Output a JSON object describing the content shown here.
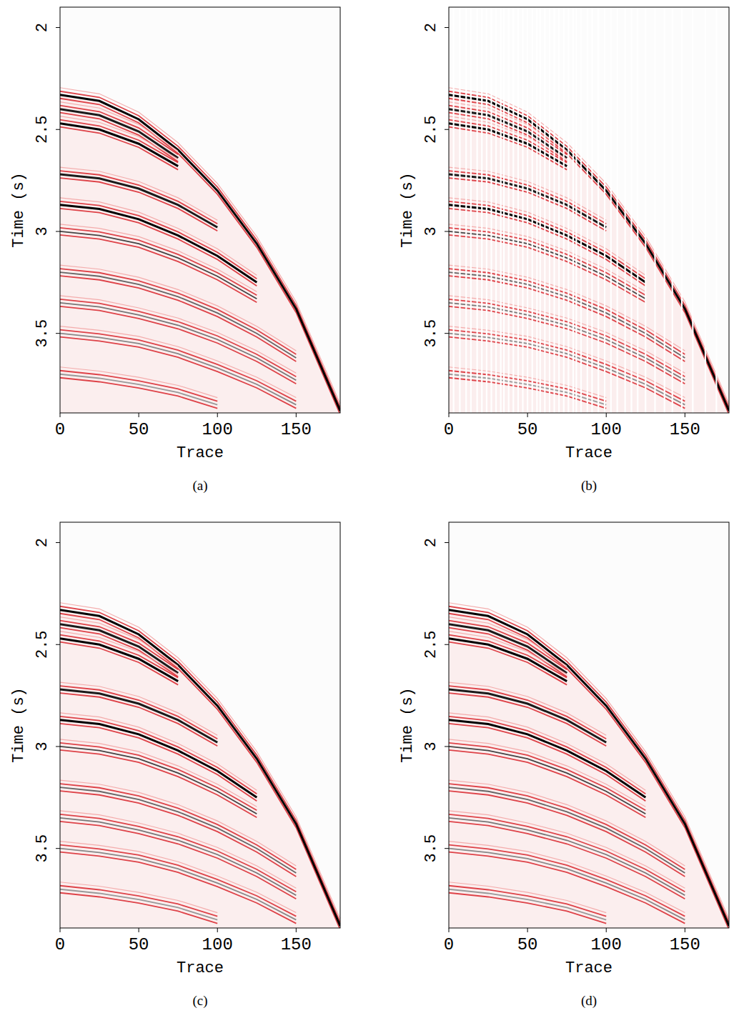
{
  "chart_data": [
    {
      "type": "seismic",
      "title": "(a)",
      "x_label": "Trace",
      "y_label": "Time (s)",
      "xlim": [
        0,
        178
      ],
      "ylim": [
        1.9,
        3.89
      ],
      "xticks": [
        0,
        50,
        100,
        150
      ],
      "yticks": [
        2,
        2.5,
        3,
        3.5
      ],
      "series": [
        {
          "x": [
            0,
            25,
            50,
            75,
            100,
            125,
            150,
            178
          ],
          "values": [
            2.33,
            2.36,
            2.45,
            2.6,
            2.8,
            3.06,
            3.38,
            3.88
          ],
          "color": "#000000"
        },
        {
          "x": [
            0,
            25,
            50,
            75
          ],
          "values": [
            2.4,
            2.43,
            2.51,
            2.64
          ],
          "color": "#1a1a1a"
        },
        {
          "x": [
            0,
            25,
            50,
            75
          ],
          "values": [
            2.47,
            2.5,
            2.57,
            2.68
          ],
          "color": "#000000"
        },
        {
          "x": [
            0,
            25,
            50,
            75,
            100
          ],
          "values": [
            2.72,
            2.74,
            2.79,
            2.87,
            2.98
          ],
          "color": "#1a1a1a"
        },
        {
          "x": [
            0,
            25,
            50,
            75,
            100,
            125
          ],
          "values": [
            2.87,
            2.89,
            2.94,
            3.02,
            3.12,
            3.25
          ],
          "color": "#000000"
        },
        {
          "x": [
            0,
            25,
            50,
            75,
            100,
            125
          ],
          "values": [
            3.0,
            3.02,
            3.06,
            3.13,
            3.22,
            3.33
          ],
          "color": "#444444"
        },
        {
          "x": [
            0,
            25,
            50,
            75,
            100,
            125,
            150
          ],
          "values": [
            3.2,
            3.22,
            3.26,
            3.32,
            3.4,
            3.5,
            3.62
          ],
          "color": "#666666"
        },
        {
          "x": [
            0,
            25,
            50,
            75,
            100,
            125,
            150
          ],
          "values": [
            3.35,
            3.37,
            3.41,
            3.46,
            3.53,
            3.62,
            3.73
          ],
          "color": "#777777"
        },
        {
          "x": [
            0,
            25,
            50,
            75,
            100,
            125,
            150
          ],
          "values": [
            3.5,
            3.52,
            3.55,
            3.6,
            3.67,
            3.75,
            3.85
          ],
          "color": "#888888"
        },
        {
          "x": [
            0,
            25,
            50,
            75,
            100
          ],
          "values": [
            3.7,
            3.72,
            3.75,
            3.79,
            3.85
          ],
          "color": "#999999"
        }
      ]
    },
    {
      "type": "seismic",
      "title": "(b)",
      "x_label": "Trace",
      "y_label": "Time (s)",
      "xlim": [
        0,
        178
      ],
      "ylim": [
        1.9,
        3.89
      ],
      "xticks": [
        0,
        50,
        100,
        150
      ],
      "yticks": [
        2,
        2.5,
        3,
        3.5
      ],
      "missing_traces": [
        3,
        7,
        11,
        14,
        18,
        21,
        24,
        27,
        30,
        33,
        35,
        38,
        41,
        44,
        47,
        50,
        53,
        56,
        58,
        61,
        64,
        67,
        70,
        73,
        76,
        79,
        81,
        84,
        88,
        91,
        95,
        99,
        103,
        107,
        112,
        116,
        120,
        125,
        131,
        137,
        142,
        148,
        155,
        163,
        170
      ],
      "series": [
        {
          "x": [
            0,
            25,
            50,
            75,
            100,
            125,
            150,
            178
          ],
          "values": [
            2.33,
            2.36,
            2.45,
            2.6,
            2.8,
            3.06,
            3.38,
            3.88
          ],
          "color": "#000000"
        },
        {
          "x": [
            0,
            25,
            50,
            75
          ],
          "values": [
            2.4,
            2.43,
            2.51,
            2.64
          ],
          "color": "#1a1a1a"
        },
        {
          "x": [
            0,
            25,
            50,
            75
          ],
          "values": [
            2.47,
            2.5,
            2.57,
            2.68
          ],
          "color": "#000000"
        },
        {
          "x": [
            0,
            25,
            50,
            75,
            100
          ],
          "values": [
            2.72,
            2.74,
            2.79,
            2.87,
            2.98
          ],
          "color": "#1a1a1a"
        },
        {
          "x": [
            0,
            25,
            50,
            75,
            100,
            125
          ],
          "values": [
            2.87,
            2.89,
            2.94,
            3.02,
            3.12,
            3.25
          ],
          "color": "#000000"
        },
        {
          "x": [
            0,
            25,
            50,
            75,
            100,
            125
          ],
          "values": [
            3.0,
            3.02,
            3.06,
            3.13,
            3.22,
            3.33
          ],
          "color": "#444444"
        },
        {
          "x": [
            0,
            25,
            50,
            75,
            100,
            125,
            150
          ],
          "values": [
            3.2,
            3.22,
            3.26,
            3.32,
            3.4,
            3.5,
            3.62
          ],
          "color": "#666666"
        },
        {
          "x": [
            0,
            25,
            50,
            75,
            100,
            125,
            150
          ],
          "values": [
            3.35,
            3.37,
            3.41,
            3.46,
            3.53,
            3.62,
            3.73
          ],
          "color": "#777777"
        },
        {
          "x": [
            0,
            25,
            50,
            75,
            100,
            125,
            150
          ],
          "values": [
            3.5,
            3.52,
            3.55,
            3.6,
            3.67,
            3.75,
            3.85
          ],
          "color": "#888888"
        },
        {
          "x": [
            0,
            25,
            50,
            75,
            100
          ],
          "values": [
            3.7,
            3.72,
            3.75,
            3.79,
            3.85
          ],
          "color": "#999999"
        }
      ]
    },
    {
      "type": "seismic",
      "title": "(c)",
      "x_label": "Trace",
      "y_label": "Time (s)",
      "xlim": [
        0,
        178
      ],
      "ylim": [
        1.9,
        3.89
      ],
      "xticks": [
        0,
        50,
        100,
        150
      ],
      "yticks": [
        2,
        2.5,
        3,
        3.5
      ],
      "series": [
        {
          "x": [
            0,
            25,
            50,
            75,
            100,
            125,
            150,
            178
          ],
          "values": [
            2.33,
            2.36,
            2.45,
            2.6,
            2.8,
            3.06,
            3.38,
            3.88
          ],
          "color": "#000000"
        },
        {
          "x": [
            0,
            25,
            50,
            75
          ],
          "values": [
            2.4,
            2.43,
            2.51,
            2.64
          ],
          "color": "#1a1a1a"
        },
        {
          "x": [
            0,
            25,
            50,
            75
          ],
          "values": [
            2.47,
            2.5,
            2.57,
            2.68
          ],
          "color": "#000000"
        },
        {
          "x": [
            0,
            25,
            50,
            75,
            100
          ],
          "values": [
            2.72,
            2.74,
            2.79,
            2.87,
            2.98
          ],
          "color": "#1a1a1a"
        },
        {
          "x": [
            0,
            25,
            50,
            75,
            100,
            125
          ],
          "values": [
            2.87,
            2.89,
            2.94,
            3.02,
            3.12,
            3.25
          ],
          "color": "#000000"
        },
        {
          "x": [
            0,
            25,
            50,
            75,
            100,
            125
          ],
          "values": [
            3.0,
            3.02,
            3.06,
            3.13,
            3.22,
            3.33
          ],
          "color": "#444444"
        },
        {
          "x": [
            0,
            25,
            50,
            75,
            100,
            125,
            150
          ],
          "values": [
            3.2,
            3.22,
            3.26,
            3.32,
            3.4,
            3.5,
            3.62
          ],
          "color": "#666666"
        },
        {
          "x": [
            0,
            25,
            50,
            75,
            100,
            125,
            150
          ],
          "values": [
            3.35,
            3.37,
            3.41,
            3.46,
            3.53,
            3.62,
            3.73
          ],
          "color": "#777777"
        },
        {
          "x": [
            0,
            25,
            50,
            75,
            100,
            125,
            150
          ],
          "values": [
            3.5,
            3.52,
            3.55,
            3.6,
            3.67,
            3.75,
            3.85
          ],
          "color": "#888888"
        },
        {
          "x": [
            0,
            25,
            50,
            75,
            100
          ],
          "values": [
            3.7,
            3.72,
            3.75,
            3.79,
            3.85
          ],
          "color": "#999999"
        }
      ]
    },
    {
      "type": "seismic",
      "title": "(d)",
      "x_label": "Trace",
      "y_label": "Time (s)",
      "xlim": [
        0,
        178
      ],
      "ylim": [
        1.9,
        3.89
      ],
      "xticks": [
        0,
        50,
        100,
        150
      ],
      "yticks": [
        2,
        2.5,
        3,
        3.5
      ],
      "series": [
        {
          "x": [
            0,
            25,
            50,
            75,
            100,
            125,
            150,
            178
          ],
          "values": [
            2.33,
            2.36,
            2.45,
            2.6,
            2.8,
            3.06,
            3.38,
            3.88
          ],
          "color": "#000000"
        },
        {
          "x": [
            0,
            25,
            50,
            75
          ],
          "values": [
            2.4,
            2.43,
            2.51,
            2.64
          ],
          "color": "#1a1a1a"
        },
        {
          "x": [
            0,
            25,
            50,
            75
          ],
          "values": [
            2.47,
            2.5,
            2.57,
            2.68
          ],
          "color": "#000000"
        },
        {
          "x": [
            0,
            25,
            50,
            75,
            100
          ],
          "values": [
            2.72,
            2.74,
            2.79,
            2.87,
            2.98
          ],
          "color": "#1a1a1a"
        },
        {
          "x": [
            0,
            25,
            50,
            75,
            100,
            125
          ],
          "values": [
            2.87,
            2.89,
            2.94,
            3.02,
            3.12,
            3.25
          ],
          "color": "#000000"
        },
        {
          "x": [
            0,
            25,
            50,
            75,
            100,
            125
          ],
          "values": [
            3.0,
            3.02,
            3.06,
            3.13,
            3.22,
            3.33
          ],
          "color": "#444444"
        },
        {
          "x": [
            0,
            25,
            50,
            75,
            100,
            125,
            150
          ],
          "values": [
            3.2,
            3.22,
            3.26,
            3.32,
            3.4,
            3.5,
            3.62
          ],
          "color": "#666666"
        },
        {
          "x": [
            0,
            25,
            50,
            75,
            100,
            125,
            150
          ],
          "values": [
            3.35,
            3.37,
            3.41,
            3.46,
            3.53,
            3.62,
            3.73
          ],
          "color": "#777777"
        },
        {
          "x": [
            0,
            25,
            50,
            75,
            100,
            125,
            150
          ],
          "values": [
            3.5,
            3.52,
            3.55,
            3.6,
            3.67,
            3.75,
            3.85
          ],
          "color": "#888888"
        },
        {
          "x": [
            0,
            25,
            50,
            75,
            100
          ],
          "values": [
            3.7,
            3.72,
            3.75,
            3.79,
            3.85
          ],
          "color": "#999999"
        }
      ]
    }
  ]
}
